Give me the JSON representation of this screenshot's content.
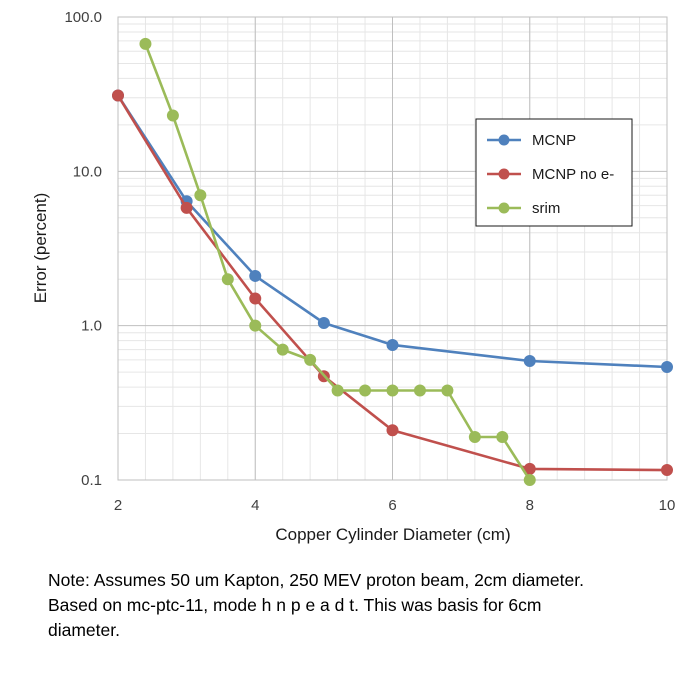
{
  "chart_data": {
    "type": "line",
    "xlabel": "Copper Cylinder Diameter (cm)",
    "ylabel": "Error (percent)",
    "x_scale": "linear",
    "y_scale": "log",
    "xlim": [
      2,
      10
    ],
    "ylim": [
      0.1,
      100
    ],
    "x_ticks": [
      2,
      4,
      6,
      8,
      10
    ],
    "x_tick_labels": [
      "2",
      "4",
      "6",
      "8",
      "10"
    ],
    "y_ticks": [
      0.1,
      1,
      10,
      100
    ],
    "y_tick_labels": [
      "0.1",
      "1.0",
      "10.0",
      "100.0"
    ],
    "grid": true,
    "legend_position": "right",
    "series": [
      {
        "name": "MCNP",
        "color": "#4f81bd",
        "x": [
          2,
          3,
          4,
          5,
          6,
          8,
          10
        ],
        "y": [
          31,
          6.4,
          2.1,
          1.04,
          0.75,
          0.59,
          0.54
        ]
      },
      {
        "name": "MCNP no e-",
        "color": "#c0504d",
        "x": [
          2,
          3,
          4,
          5,
          6,
          8,
          10
        ],
        "y": [
          31,
          5.8,
          1.5,
          0.47,
          0.21,
          0.118,
          0.116
        ]
      },
      {
        "name": "srim",
        "color": "#9bbb59",
        "x": [
          2.4,
          2.8,
          3.2,
          3.6,
          4.0,
          4.4,
          4.8,
          5.2,
          5.6,
          6.0,
          6.4,
          6.8,
          7.2,
          7.6,
          8.0
        ],
        "y": [
          67,
          23,
          7.0,
          2.0,
          1.0,
          0.7,
          0.6,
          0.38,
          0.38,
          0.38,
          0.38,
          0.38,
          0.19,
          0.19,
          0.1
        ]
      }
    ]
  },
  "note": {
    "lines": [
      "Note: Assumes 50 um Kapton, 250 MEV proton beam, 2cm diameter.",
      "Based on mc-ptc-11, mode h n p e a d t. This was basis for 6cm",
      "diameter."
    ]
  }
}
